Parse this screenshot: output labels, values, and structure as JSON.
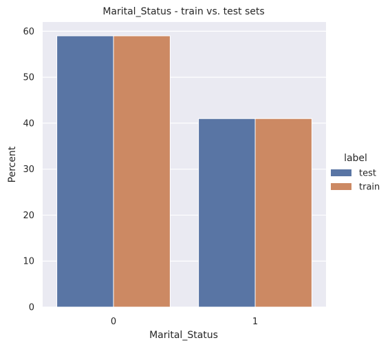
{
  "chart_data": {
    "type": "bar",
    "title": "Marital_Status - train vs. test sets",
    "xlabel": "Marital_Status",
    "ylabel": "Percent",
    "categories": [
      "0",
      "1"
    ],
    "series": [
      {
        "name": "test",
        "values": [
          59,
          41
        ],
        "color": "#5975a4"
      },
      {
        "name": "train",
        "values": [
          59,
          41
        ],
        "color": "#cc8963"
      }
    ],
    "ylim": [
      0,
      62
    ],
    "yticks": [
      0,
      10,
      20,
      30,
      40,
      50,
      60
    ],
    "grid": true,
    "background": "#eaeaf2",
    "legend": {
      "title": "label",
      "placement": "right"
    }
  }
}
